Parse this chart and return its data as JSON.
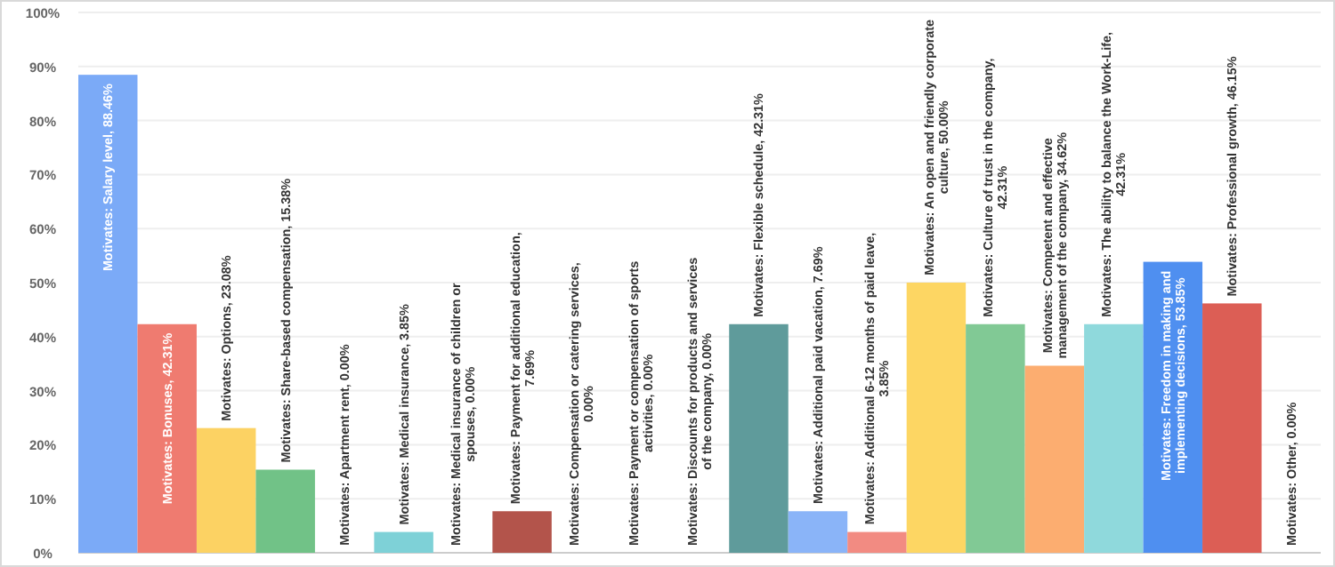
{
  "chart_data": {
    "type": "bar",
    "categories": [
      null,
      null,
      null,
      null,
      null,
      null,
      null,
      null,
      null,
      null,
      null,
      null,
      null,
      null,
      null,
      null,
      null,
      null,
      null,
      null,
      null
    ],
    "values": [
      88.46,
      42.31,
      23.08,
      15.38,
      0,
      3.85,
      0,
      7.69,
      0,
      0,
      0,
      42.31,
      7.69,
      3.85,
      50,
      42.31,
      34.62,
      42.31,
      53.85,
      46.15,
      0
    ],
    "colors": [
      "#7baaf7",
      "#ef7b70",
      "#fcd263",
      "#71c287",
      "#b0b0b0",
      "#7ed1d7",
      "#b0b0b0",
      "#b3544b",
      "#b0b0b0",
      "#b0b0b0",
      "#b0b0b0",
      "#5f9b9b",
      "#8ab4f8",
      "#f28b82",
      "#fdd663",
      "#81c995",
      "#fcad70",
      "#8fd9dc",
      "#4f8ff0",
      "#dc5e55",
      "#b0b0b0"
    ],
    "value_labels": [
      "Motivates: Salary level, 88.46%",
      "Motivates: Bonuses, 42.31%",
      "Motivates: Options, 23.08%",
      "Motivates: Share-based compensation, 15.38%",
      "Motivates: Apartment rent, 0.00%",
      "Motivates: Medical insurance, 3.85%",
      "Motivates: Medical insurance of children or\nspouses, 0.00%",
      "Motivates: Payment for additional education,\n7.69%",
      "Motivates: Compensation or catering services,\n0.00%",
      "Motivates: Payment or compensation of sports\nactivities, 0.00%",
      "Motivates: Discounts for products and services\nof the company, 0.00%",
      "Motivates: Flexible schedule, 42.31%",
      "Motivates: Additional paid vacation, 7.69%",
      "Motivates: Additional 6-12 months of paid leave,\n3.85%",
      "Motivates: An open and friendly corporate\nculture, 50.00%",
      "Motivates: Culture of trust in the company,\n42.31%",
      "Motivates: Competent and effective\nmanagement of the company, 34.62%",
      "Motivates: The ability to balance the Work-Life,\n42.31%",
      "Motivates: Freedom in making and\nimplementing decisions, 53.85%",
      "Motivates: Professional growth, 46.15%",
      "Motivates: Other, 0.00%"
    ],
    "ylim": [
      0,
      100
    ],
    "yticks": [
      {
        "value": 0,
        "label": "0%"
      },
      {
        "value": 10,
        "label": "10%"
      },
      {
        "value": 20,
        "label": "20%"
      },
      {
        "value": 30,
        "label": "30%"
      },
      {
        "value": 40,
        "label": "40%"
      },
      {
        "value": 50,
        "label": "50%"
      },
      {
        "value": 60,
        "label": "60%"
      },
      {
        "value": 70,
        "label": "70%"
      },
      {
        "value": 80,
        "label": "80%"
      },
      {
        "value": 90,
        "label": "90%"
      },
      {
        "value": 100,
        "label": "100%"
      }
    ],
    "grid": "y"
  }
}
